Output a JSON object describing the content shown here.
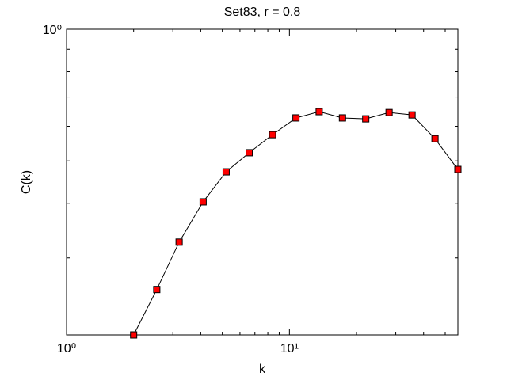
{
  "chart_data": {
    "type": "line",
    "title": "Set83, r = 0.8",
    "xlabel": "k",
    "ylabel": "C(k)",
    "log_x": true,
    "log_y": true,
    "x": [
      2,
      2.54,
      3.2,
      4.1,
      5.2,
      6.6,
      8.4,
      10.7,
      13.6,
      17.3,
      22,
      28,
      35.5,
      45,
      57
    ],
    "series": [
      {
        "name": "C(k)",
        "color": "#ff0000",
        "line_color": "#000000",
        "values": [
          0.2,
          0.254,
          0.326,
          0.403,
          0.472,
          0.522,
          0.574,
          0.627,
          0.648,
          0.627,
          0.624,
          0.645,
          0.637,
          0.562,
          0.478
        ]
      }
    ],
    "xlim": [
      1,
      57
    ],
    "ylim": [
      0.2,
      1
    ],
    "xticks": [
      {
        "value": 1,
        "label": "10⁰"
      },
      {
        "value": 10,
        "label": "10¹"
      }
    ],
    "yticks": [
      {
        "value": 1,
        "label": "10⁰"
      }
    ],
    "xminorticks": [
      2,
      3,
      4,
      5,
      6,
      7,
      8,
      9,
      20,
      30,
      40,
      50
    ],
    "yminorticks": [
      0.3,
      0.4,
      0.5,
      0.6,
      0.7,
      0.8,
      0.9
    ]
  }
}
